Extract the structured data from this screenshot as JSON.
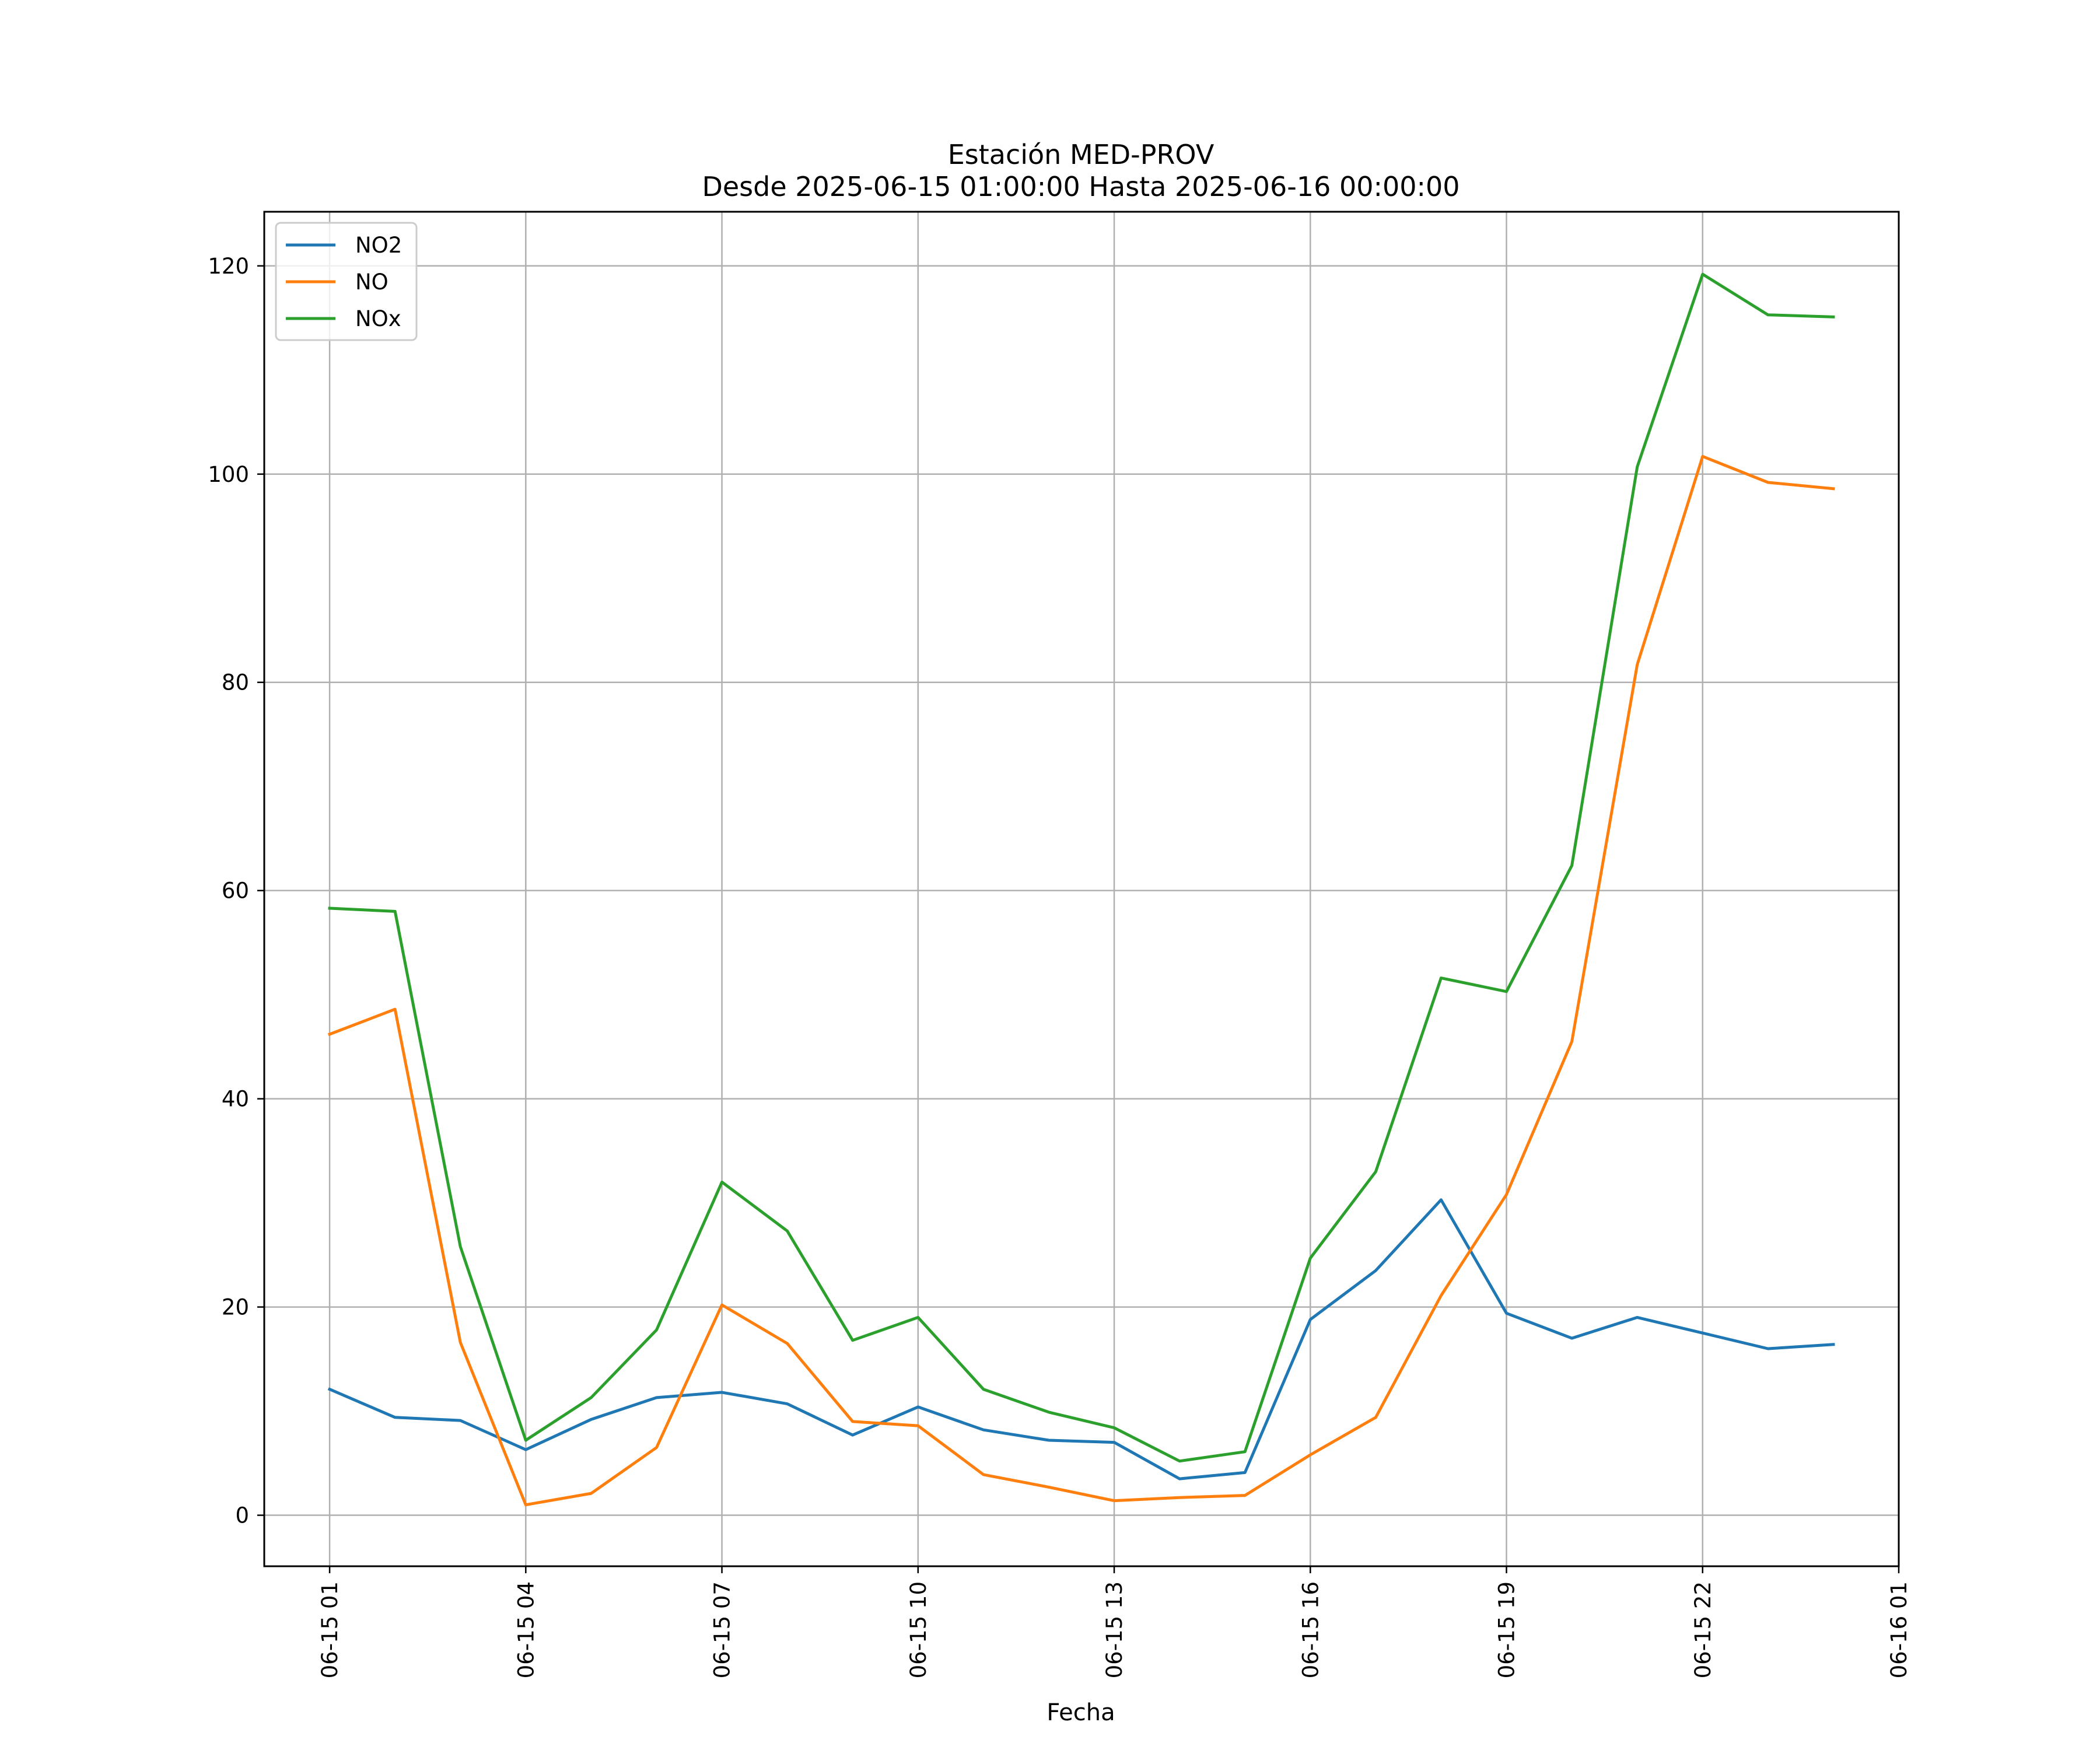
{
  "chart_data": {
    "type": "line",
    "title": "Estación MED-PROV",
    "subtitle": "Desde 2025-06-15 01:00:00 Hasta 2025-06-16 00:00:00",
    "xlabel": "Fecha",
    "ylabel": "",
    "x": [
      "2025-06-15 01:00",
      "2025-06-15 02:00",
      "2025-06-15 03:00",
      "2025-06-15 04:00",
      "2025-06-15 05:00",
      "2025-06-15 06:00",
      "2025-06-15 07:00",
      "2025-06-15 08:00",
      "2025-06-15 09:00",
      "2025-06-15 10:00",
      "2025-06-15 11:00",
      "2025-06-15 12:00",
      "2025-06-15 13:00",
      "2025-06-15 14:00",
      "2025-06-15 15:00",
      "2025-06-15 16:00",
      "2025-06-15 17:00",
      "2025-06-15 18:00",
      "2025-06-15 19:00",
      "2025-06-15 20:00",
      "2025-06-15 21:00",
      "2025-06-15 22:00",
      "2025-06-15 23:00",
      "2025-06-16 00:00"
    ],
    "xlim": [
      "2025-06-15 00:00",
      "2025-06-16 01:00"
    ],
    "xticks": [
      "2025-06-15 01:00",
      "2025-06-15 04:00",
      "2025-06-15 07:00",
      "2025-06-15 10:00",
      "2025-06-15 13:00",
      "2025-06-15 16:00",
      "2025-06-15 19:00",
      "2025-06-15 22:00",
      "2025-06-16 01:00"
    ],
    "xtick_labels": [
      "06-15 01",
      "06-15 04",
      "06-15 07",
      "06-15 10",
      "06-15 13",
      "06-15 16",
      "06-15 19",
      "06-15 22",
      "06-16 01"
    ],
    "ylim": [
      -4.9,
      125.2
    ],
    "yticks": [
      0,
      20,
      40,
      60,
      80,
      100,
      120
    ],
    "ytick_labels": [
      "0",
      "20",
      "40",
      "60",
      "80",
      "100",
      "120"
    ],
    "grid": true,
    "legend_position": "top-left",
    "series": [
      {
        "name": "NO2",
        "color": "#1f77b4",
        "values": [
          12.1,
          9.4,
          9.1,
          6.3,
          9.2,
          11.3,
          11.8,
          10.7,
          7.7,
          10.4,
          8.2,
          7.2,
          7.0,
          3.5,
          4.1,
          18.8,
          23.5,
          30.3,
          19.4,
          17.0,
          19.0,
          17.5,
          16.0,
          16.4
        ]
      },
      {
        "name": "NO",
        "color": "#ff7f0e",
        "values": [
          46.2,
          48.6,
          16.6,
          1.0,
          2.1,
          6.5,
          20.2,
          16.5,
          9.0,
          8.6,
          3.9,
          2.7,
          1.4,
          1.7,
          1.9,
          5.8,
          9.4,
          21.1,
          30.8,
          45.5,
          81.7,
          101.7,
          99.2,
          98.6
        ]
      },
      {
        "name": "NOx",
        "color": "#2ca02c",
        "values": [
          58.3,
          58.0,
          25.8,
          7.2,
          11.3,
          17.8,
          32.0,
          27.3,
          16.8,
          19.0,
          12.1,
          9.9,
          8.4,
          5.2,
          6.1,
          24.7,
          33.0,
          51.6,
          50.3,
          62.4,
          100.7,
          119.2,
          115.3,
          115.1
        ]
      }
    ]
  }
}
